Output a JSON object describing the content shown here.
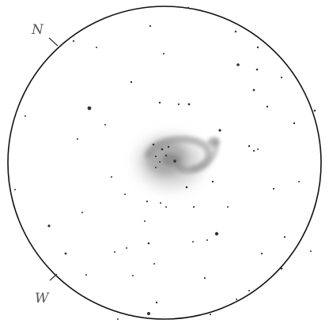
{
  "sketch": {
    "direction_labels": {
      "north": "N",
      "west": "W"
    },
    "colors": {
      "background": "#ffffff",
      "circle_outline": "#111111",
      "star": "#333333",
      "nebula": "#8a8a8a",
      "label": "#555555"
    }
  }
}
